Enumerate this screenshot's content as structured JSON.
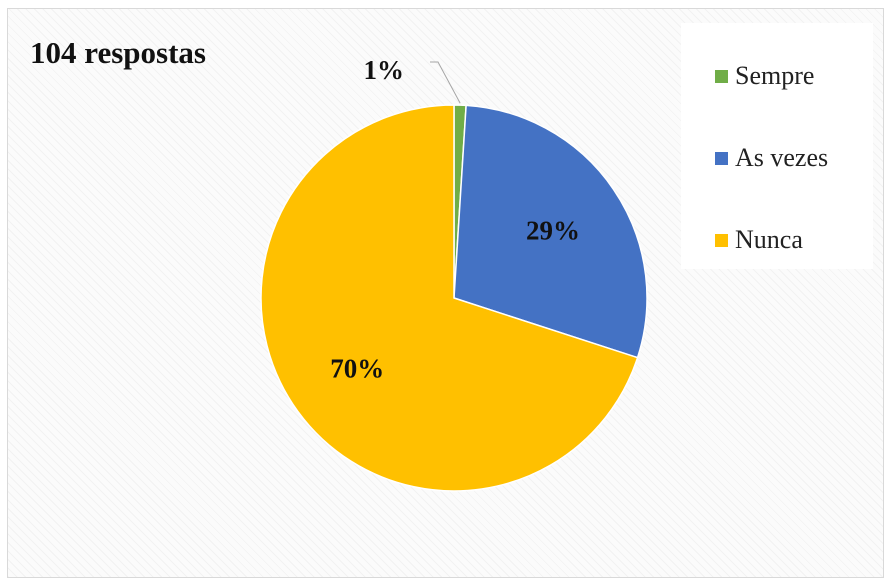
{
  "chart_data": {
    "type": "pie",
    "title": "104 respostas",
    "categories": [
      "Sempre",
      "As vezes",
      "Nunca"
    ],
    "values": [
      1,
      29,
      70
    ],
    "value_labels": [
      "1%",
      "29%",
      "70%"
    ],
    "colors": [
      "#70AD47",
      "#4472C4",
      "#FFC000"
    ],
    "legend_position": "top-right",
    "grid": false
  }
}
